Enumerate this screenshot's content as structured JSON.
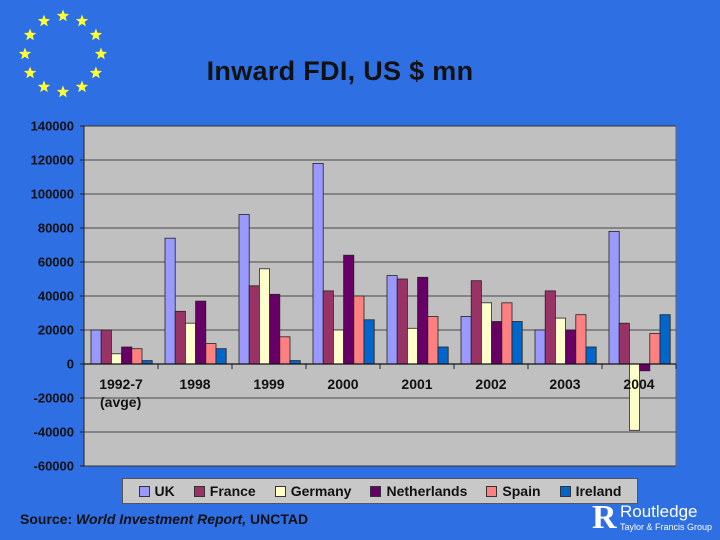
{
  "title": "Inward FDI, US $ mn",
  "source": {
    "prefix": "Source:",
    "report": "World Investment Report,",
    "org": "UNCTAD"
  },
  "logo": {
    "letter": "R",
    "name": "Routledge",
    "sub": "Taylor & Francis Group"
  },
  "colors": {
    "background": "#2f6fe4",
    "plot_area": "#c0c0c0",
    "stars": "#ffff33"
  },
  "chart_data": {
    "type": "bar",
    "categories": [
      "1992-7\n(avge)",
      "1998",
      "1999",
      "2000",
      "2001",
      "2002",
      "2003",
      "2004"
    ],
    "ylim": [
      -60000,
      140000
    ],
    "yticks": [
      140000,
      120000,
      100000,
      80000,
      60000,
      40000,
      20000,
      0,
      -20000,
      -40000,
      -60000
    ],
    "grid": true,
    "legend_position": "bottom",
    "series": [
      {
        "name": "UK",
        "color": "#9999ff",
        "values": [
          20000,
          74000,
          88000,
          118000,
          52000,
          28000,
          20000,
          78000
        ]
      },
      {
        "name": "France",
        "color": "#993366",
        "values": [
          20000,
          31000,
          46000,
          43000,
          50000,
          49000,
          43000,
          24000
        ]
      },
      {
        "name": "Germany",
        "color": "#ffffcc",
        "values": [
          6000,
          24000,
          56000,
          20000,
          21000,
          36000,
          27000,
          -39000
        ]
      },
      {
        "name": "Netherlands",
        "color": "#660066",
        "values": [
          10000,
          37000,
          41000,
          64000,
          51000,
          25000,
          20000,
          -4000
        ]
      },
      {
        "name": "Spain",
        "color": "#ff8080",
        "values": [
          9000,
          12000,
          16000,
          40000,
          28000,
          36000,
          29000,
          18000
        ]
      },
      {
        "name": "Ireland",
        "color": "#0066cc",
        "values": [
          2000,
          9000,
          2000,
          26000,
          10000,
          25000,
          10000,
          29000
        ]
      }
    ]
  }
}
